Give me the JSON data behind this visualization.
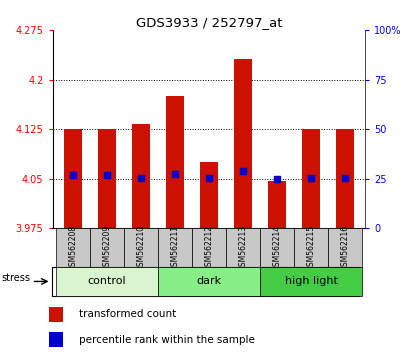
{
  "title": "GDS3933 / 252797_at",
  "samples": [
    "GSM562208",
    "GSM562209",
    "GSM562210",
    "GSM562211",
    "GSM562212",
    "GSM562213",
    "GSM562214",
    "GSM562215",
    "GSM562216"
  ],
  "bar_values": [
    4.125,
    4.125,
    4.133,
    4.175,
    4.075,
    4.232,
    4.047,
    4.125,
    4.125
  ],
  "dot_values": [
    4.055,
    4.055,
    4.051,
    4.057,
    4.051,
    4.062,
    4.05,
    4.051,
    4.051
  ],
  "ylim": [
    3.975,
    4.275
  ],
  "y_ticks": [
    3.975,
    4.05,
    4.125,
    4.2,
    4.275
  ],
  "y_tick_labels": [
    "3.975",
    "4.05",
    "4.125",
    "4.2",
    "4.275"
  ],
  "right_yticks": [
    0,
    25,
    50,
    75,
    100
  ],
  "right_ytick_labels": [
    "0",
    "25",
    "50",
    "75",
    "100%"
  ],
  "bar_color": "#cc1100",
  "dot_color": "#0000cc",
  "bar_bottom": 3.975,
  "groups": [
    {
      "label": "control",
      "start": 0,
      "end": 3,
      "color": "#d8f5d0"
    },
    {
      "label": "dark",
      "start": 3,
      "end": 6,
      "color": "#88ee88"
    },
    {
      "label": "high light",
      "start": 6,
      "end": 9,
      "color": "#44cc44"
    }
  ],
  "stress_label": "stress",
  "legend_items": [
    {
      "label": "transformed count",
      "color": "#cc1100"
    },
    {
      "label": "percentile rank within the sample",
      "color": "#0000cc"
    }
  ],
  "background_color": "#ffffff"
}
